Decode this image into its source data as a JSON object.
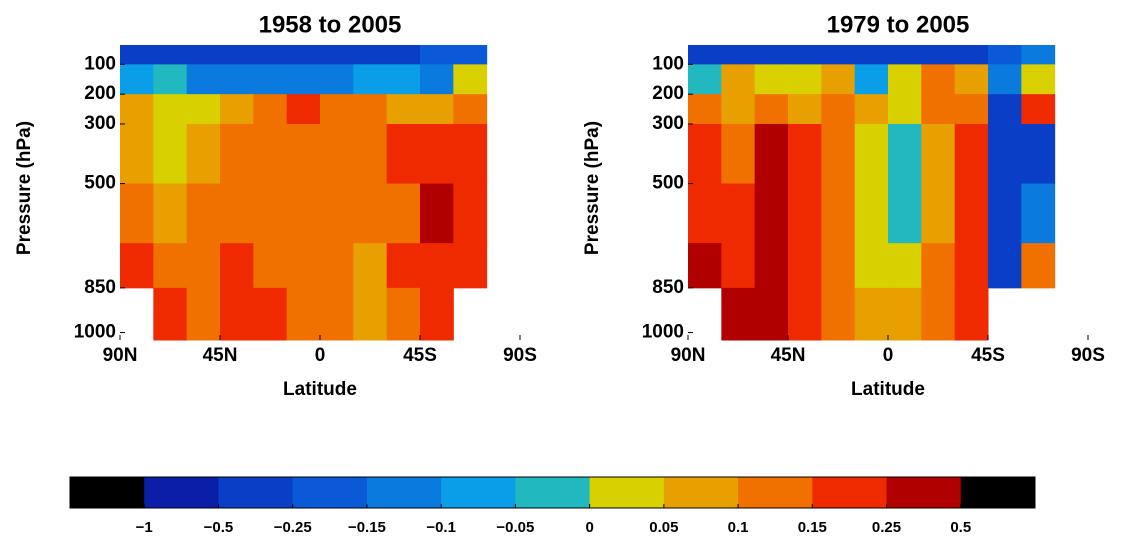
{
  "chart_data": [
    {
      "type": "contour",
      "title": "1958 to 2005",
      "xlabel": "Latitude",
      "ylabel": "Pressure (hPa)",
      "xlim": [
        90,
        -90
      ],
      "ylim": [
        1025,
        35
      ],
      "xticks": [
        {
          "value": 90,
          "label": "90N"
        },
        {
          "value": 45,
          "label": "45N"
        },
        0,
        {
          "value": -45,
          "label": "45S"
        },
        {
          "value": -90,
          "label": "90S"
        }
      ],
      "yticks": [
        100,
        200,
        300,
        500,
        850,
        1000
      ],
      "lat_edges": [
        90,
        75,
        60,
        45,
        30,
        15,
        0,
        -15,
        -30,
        -45,
        -60,
        -75,
        -90
      ],
      "p_edges": [
        35,
        100,
        200,
        300,
        500,
        700,
        850,
        1025
      ],
      "z": [
        [
          -0.3,
          -0.3,
          -0.3,
          -0.3,
          -0.3,
          -0.3,
          -0.3,
          -0.3,
          -0.3,
          -0.2,
          -0.2,
          null
        ],
        [
          -0.07,
          -0.02,
          -0.12,
          -0.12,
          -0.12,
          -0.12,
          -0.12,
          -0.07,
          -0.07,
          -0.12,
          0.03,
          null
        ],
        [
          0.07,
          0.03,
          0.03,
          0.07,
          0.12,
          0.2,
          0.12,
          0.12,
          0.07,
          0.07,
          0.12,
          null
        ],
        [
          0.07,
          0.03,
          0.07,
          0.12,
          0.12,
          0.12,
          0.12,
          0.12,
          0.2,
          0.2,
          0.2,
          null
        ],
        [
          0.12,
          0.07,
          0.12,
          0.12,
          0.12,
          0.12,
          0.12,
          0.12,
          0.12,
          0.3,
          0.2,
          null
        ],
        [
          0.2,
          0.12,
          0.12,
          0.2,
          0.12,
          0.12,
          0.12,
          0.07,
          0.2,
          0.2,
          0.2,
          null
        ],
        [
          null,
          0.2,
          0.12,
          0.2,
          0.2,
          0.12,
          0.12,
          0.07,
          0.12,
          0.2,
          null,
          null
        ]
      ]
    },
    {
      "type": "contour",
      "title": "1979 to 2005",
      "xlabel": "Latitude",
      "ylabel": "Pressure (hPa)",
      "xlim": [
        90,
        -90
      ],
      "ylim": [
        1025,
        35
      ],
      "xticks": [
        {
          "value": 90,
          "label": "90N"
        },
        {
          "value": 45,
          "label": "45N"
        },
        0,
        {
          "value": -45,
          "label": "45S"
        },
        {
          "value": -90,
          "label": "90S"
        }
      ],
      "yticks": [
        100,
        200,
        300,
        500,
        850,
        1000
      ],
      "lat_edges": [
        90,
        75,
        60,
        45,
        30,
        15,
        0,
        -15,
        -30,
        -45,
        -60,
        -75,
        -90
      ],
      "p_edges": [
        35,
        100,
        200,
        300,
        500,
        700,
        850,
        1025
      ],
      "z": [
        [
          -0.3,
          -0.3,
          -0.3,
          -0.3,
          -0.3,
          -0.3,
          -0.3,
          -0.3,
          -0.3,
          -0.2,
          -0.12,
          null
        ],
        [
          -0.02,
          0.07,
          0.03,
          0.03,
          0.07,
          -0.07,
          0.03,
          0.12,
          0.07,
          -0.12,
          0.03,
          null
        ],
        [
          0.12,
          0.07,
          0.12,
          0.07,
          0.12,
          0.07,
          0.03,
          0.12,
          0.12,
          -0.3,
          0.2,
          null
        ],
        [
          0.2,
          0.12,
          0.3,
          0.2,
          0.12,
          0.03,
          -0.02,
          0.07,
          0.2,
          -0.3,
          -0.3,
          null
        ],
        [
          0.2,
          0.2,
          0.3,
          0.2,
          0.12,
          0.03,
          -0.02,
          0.07,
          0.2,
          -0.3,
          -0.12,
          null
        ],
        [
          0.3,
          0.2,
          0.3,
          0.2,
          0.12,
          0.03,
          0.03,
          0.12,
          0.2,
          -0.3,
          0.12,
          null
        ],
        [
          null,
          0.3,
          0.3,
          0.2,
          0.12,
          0.07,
          0.07,
          0.12,
          0.2,
          null,
          null,
          null
        ]
      ]
    }
  ],
  "colorbar": {
    "boundaries": [
      {
        "value": -1,
        "label": "−1"
      },
      {
        "value": -0.5,
        "label": "−0.5"
      },
      {
        "value": -0.25,
        "label": "−0.25"
      },
      {
        "value": -0.15,
        "label": "−0.15"
      },
      {
        "value": -0.1,
        "label": "−0.1"
      },
      {
        "value": -0.05,
        "label": "−0.05"
      },
      0,
      0.05,
      0.1,
      0.15,
      0.25,
      0.5
    ],
    "colors": [
      "#000000",
      "#0b1ea8",
      "#0a3ec6",
      "#0a5ad8",
      "#0a7ade",
      "#0a9ee8",
      "#22b8c0",
      "#d8d000",
      "#e8a000",
      "#f07000",
      "#f02a00",
      "#b00000",
      "#000000"
    ]
  }
}
